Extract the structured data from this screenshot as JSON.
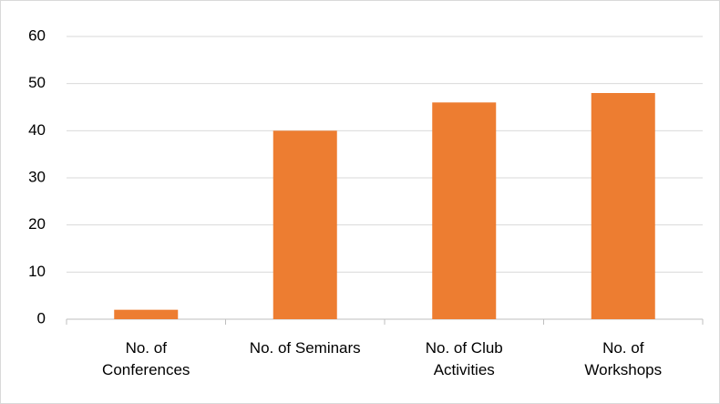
{
  "chart_data": {
    "type": "bar",
    "categories": [
      "No. of Conferences",
      "No. of Seminars",
      "No. of Club Activities",
      "No. of Workshops"
    ],
    "values": [
      2,
      40,
      46,
      48
    ],
    "color": "#ed7d31",
    "ylim": [
      0,
      60
    ],
    "yticks": [
      0,
      10,
      20,
      30,
      40,
      50,
      60
    ],
    "grid": true
  }
}
